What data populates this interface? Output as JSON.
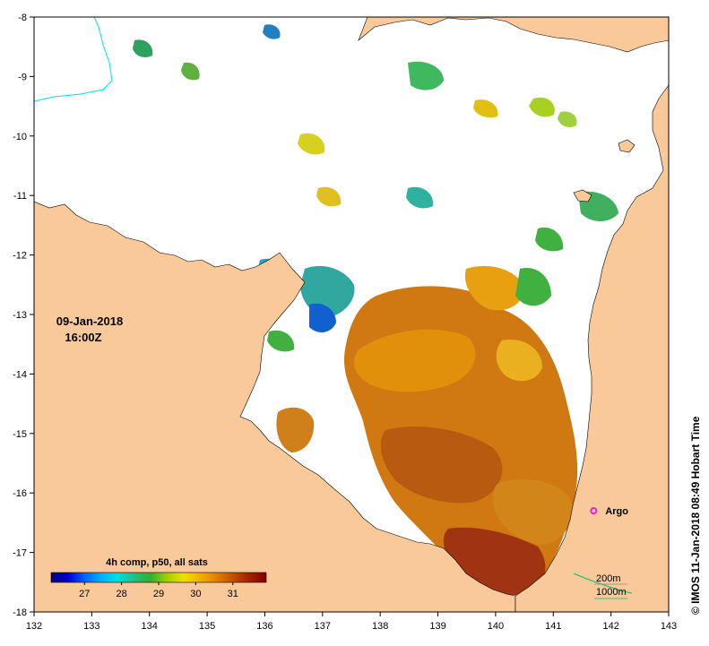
{
  "map": {
    "date": "09-Jan-2018",
    "time": "16:00Z",
    "x_ticks": [
      "132",
      "133",
      "134",
      "135",
      "136",
      "137",
      "138",
      "139",
      "140",
      "141",
      "142",
      "143"
    ],
    "y_ticks": [
      "-8",
      "-9",
      "-10",
      "-11",
      "-12",
      "-13",
      "-14",
      "-15",
      "-16",
      "-17",
      "-18"
    ],
    "lon_range": [
      132,
      143
    ],
    "lat_range": [
      -18,
      -8
    ],
    "land_color": "#fac99a",
    "argo": {
      "label": "Argo",
      "lon": 141.7,
      "lat": -16.3,
      "color": "#e81ce0"
    },
    "contours": {
      "c200": "200m",
      "c1000": "1000m"
    },
    "credit": "© IMOS 11-Jan-2018 08:49 Hobart Time"
  },
  "colorbar": {
    "title": "4h comp, p50, all sats",
    "ticks": [
      "27",
      "28",
      "29",
      "30",
      "31"
    ],
    "range": [
      26.1,
      31.9
    ],
    "colors": [
      "#000080",
      "#0000d0",
      "#0060ff",
      "#00b0ff",
      "#00e0e0",
      "#20c080",
      "#30b030",
      "#a0d000",
      "#f0e000",
      "#f0b000",
      "#e08000",
      "#c05000",
      "#a02000",
      "#800000"
    ]
  }
}
